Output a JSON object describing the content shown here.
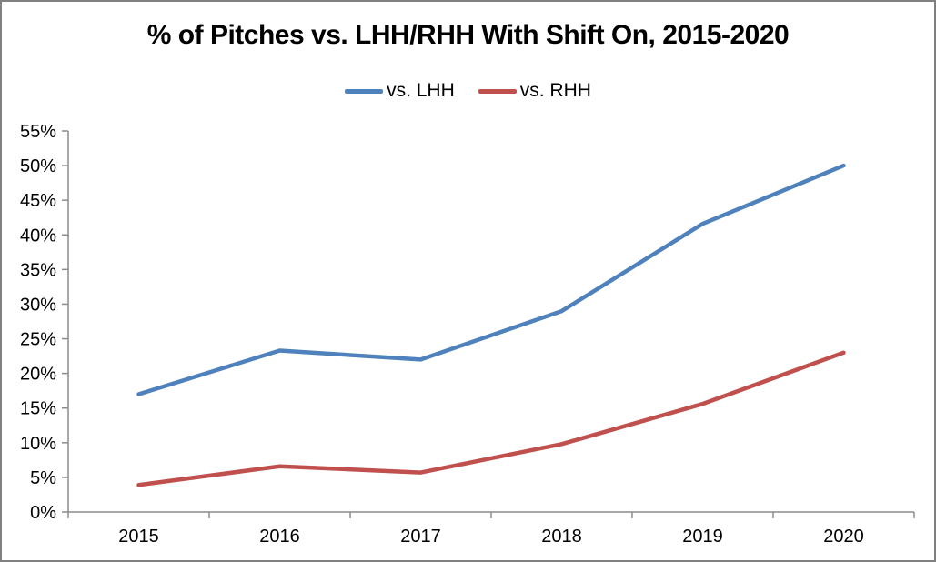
{
  "frame": {
    "border_color": "#808080",
    "background_color": "#FFFFFF"
  },
  "chart_data": {
    "type": "line",
    "title": "% of Pitches vs. LHH/RHH With Shift On, 2015-2020",
    "categories": [
      "2015",
      "2016",
      "2017",
      "2018",
      "2019",
      "2020"
    ],
    "series": [
      {
        "name": "vs. LHH",
        "color": "#4F81BD",
        "values": [
          17.0,
          23.3,
          22.0,
          29.0,
          41.6,
          50.0
        ]
      },
      {
        "name": "vs. RHH",
        "color": "#C0504D",
        "values": [
          3.9,
          6.6,
          5.7,
          9.8,
          15.6,
          23.0
        ]
      }
    ],
    "xlabel": "",
    "ylabel": "",
    "ylim": [
      0,
      55
    ],
    "ytick_step": 5,
    "ytick_labels": [
      "0%",
      "5%",
      "10%",
      "15%",
      "20%",
      "25%",
      "30%",
      "35%",
      "40%",
      "45%",
      "50%",
      "55%"
    ],
    "grid": false,
    "legend_position": "top-center",
    "axis_color": "#8C8C8C",
    "tick_label_color": "#000000"
  }
}
